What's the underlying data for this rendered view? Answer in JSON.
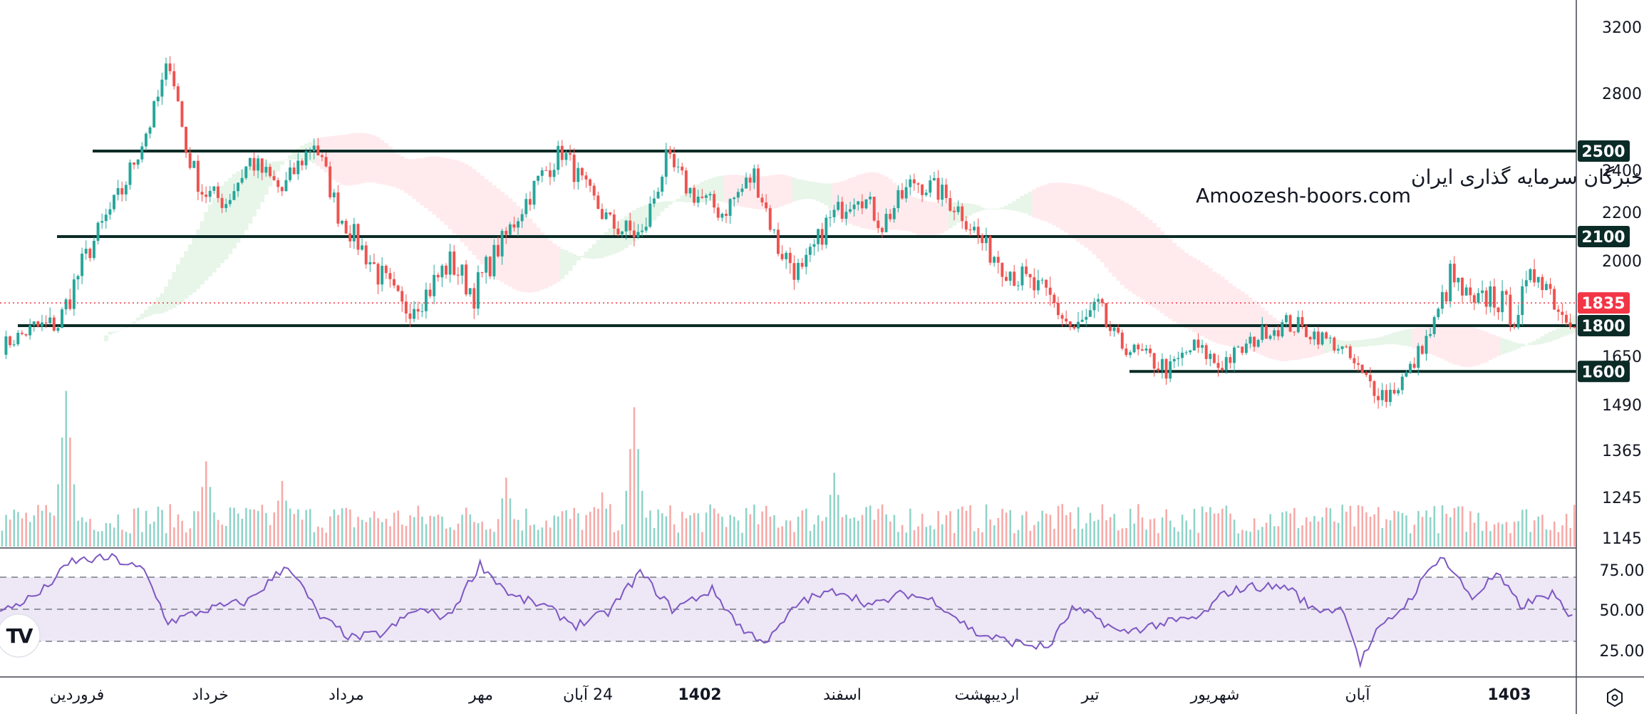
{
  "watermark": {
    "line1": "انجمن خبرگان سرمایه گذاری ایران",
    "line2": "Amoozesh-boors.com"
  },
  "logo": "TV",
  "colors": {
    "up": "#26a69a",
    "down": "#ef5350",
    "level_line": "#0b2b26",
    "current_price": "#f23645",
    "rsi_line": "#7e57c2",
    "rsi_band": "#ede7f6",
    "cloud_green": "#e8f5e9",
    "cloud_red": "#ffebee"
  },
  "price_axis": {
    "ticks": [
      "3200",
      "2800",
      "2400",
      "2200",
      "2000",
      "1650",
      "1490",
      "1365",
      "1245",
      "1145"
    ],
    "levels": [
      {
        "value": 2500,
        "label": "2500"
      },
      {
        "value": 2100,
        "label": "2100"
      },
      {
        "value": 1800,
        "label": "1800"
      },
      {
        "value": 1600,
        "label": "1600"
      }
    ],
    "current_price": {
      "value": 1835,
      "label": "1835"
    }
  },
  "rsi_axis": {
    "ticks": [
      "75.00",
      "50.00",
      "25.00"
    ]
  },
  "time_axis": {
    "labels": [
      {
        "text": "فروردین",
        "bold": false
      },
      {
        "text": "خرداد",
        "bold": false
      },
      {
        "text": "مرداد",
        "bold": false
      },
      {
        "text": "مهر",
        "bold": false
      },
      {
        "text": "24 آبان",
        "bold": false
      },
      {
        "text": "1402",
        "bold": true
      },
      {
        "text": "اسفند",
        "bold": false
      },
      {
        "text": "اردیبهشت",
        "bold": false
      },
      {
        "text": "تیر",
        "bold": false
      },
      {
        "text": "شهریور",
        "bold": false
      },
      {
        "text": "آبان",
        "bold": false
      },
      {
        "text": "1403",
        "bold": true
      }
    ]
  },
  "chart_data": {
    "type": "candlestick",
    "ylim": [
      1145,
      3200
    ],
    "support_resistance": [
      2500,
      2100,
      1800,
      1600
    ],
    "close_anchors": [
      [
        0,
        1700
      ],
      [
        8,
        1790
      ],
      [
        14,
        1800
      ],
      [
        22,
        2050
      ],
      [
        30,
        2300
      ],
      [
        38,
        2700
      ],
      [
        42,
        3000
      ],
      [
        46,
        2500
      ],
      [
        50,
        2300
      ],
      [
        56,
        2250
      ],
      [
        62,
        2450
      ],
      [
        70,
        2300
      ],
      [
        78,
        2550
      ],
      [
        84,
        2200
      ],
      [
        92,
        2000
      ],
      [
        100,
        1850
      ],
      [
        106,
        1900
      ],
      [
        112,
        2000
      ],
      [
        118,
        1900
      ],
      [
        126,
        2100
      ],
      [
        134,
        2350
      ],
      [
        140,
        2500
      ],
      [
        146,
        2300
      ],
      [
        152,
        2150
      ],
      [
        160,
        2100
      ],
      [
        166,
        2450
      ],
      [
        172,
        2300
      ],
      [
        180,
        2200
      ],
      [
        188,
        2380
      ],
      [
        194,
        2050
      ],
      [
        200,
        1950
      ],
      [
        206,
        2150
      ],
      [
        214,
        2300
      ],
      [
        220,
        2150
      ],
      [
        228,
        2350
      ],
      [
        234,
        2300
      ],
      [
        240,
        2200
      ],
      [
        246,
        2050
      ],
      [
        254,
        1950
      ],
      [
        262,
        1880
      ],
      [
        268,
        1780
      ],
      [
        274,
        1850
      ],
      [
        280,
        1700
      ],
      [
        286,
        1650
      ],
      [
        292,
        1600
      ],
      [
        298,
        1700
      ],
      [
        304,
        1620
      ],
      [
        310,
        1680
      ],
      [
        316,
        1780
      ],
      [
        322,
        1800
      ],
      [
        328,
        1760
      ],
      [
        334,
        1700
      ],
      [
        340,
        1580
      ],
      [
        346,
        1520
      ],
      [
        352,
        1600
      ],
      [
        358,
        1800
      ],
      [
        362,
        1950
      ],
      [
        368,
        1850
      ],
      [
        372,
        1900
      ],
      [
        378,
        1830
      ],
      [
        384,
        1980
      ],
      [
        390,
        1835
      ]
    ],
    "volume_peaks": [
      [
        16,
        0.95
      ],
      [
        51,
        0.52
      ],
      [
        70,
        0.4
      ],
      [
        126,
        0.42
      ],
      [
        150,
        0.33
      ],
      [
        158,
        0.85
      ],
      [
        208,
        0.45
      ],
      [
        306,
        0.25
      ],
      [
        356,
        0.22
      ]
    ],
    "rsi": {
      "levels": [
        70,
        50,
        30
      ],
      "range": [
        10,
        90
      ],
      "anchors": [
        [
          0,
          48
        ],
        [
          10,
          60
        ],
        [
          18,
          80
        ],
        [
          28,
          82
        ],
        [
          36,
          74
        ],
        [
          42,
          42
        ],
        [
          52,
          50
        ],
        [
          62,
          55
        ],
        [
          72,
          78
        ],
        [
          80,
          45
        ],
        [
          88,
          32
        ],
        [
          96,
          35
        ],
        [
          104,
          50
        ],
        [
          112,
          45
        ],
        [
          120,
          78
        ],
        [
          128,
          58
        ],
        [
          136,
          52
        ],
        [
          144,
          40
        ],
        [
          152,
          48
        ],
        [
          160,
          73
        ],
        [
          168,
          50
        ],
        [
          178,
          62
        ],
        [
          186,
          36
        ],
        [
          192,
          30
        ],
        [
          200,
          55
        ],
        [
          210,
          62
        ],
        [
          218,
          52
        ],
        [
          226,
          60
        ],
        [
          234,
          55
        ],
        [
          244,
          35
        ],
        [
          252,
          30
        ],
        [
          262,
          26
        ],
        [
          268,
          50
        ],
        [
          274,
          45
        ],
        [
          280,
          35
        ],
        [
          288,
          40
        ],
        [
          300,
          45
        ],
        [
          306,
          60
        ],
        [
          312,
          64
        ],
        [
          322,
          64
        ],
        [
          328,
          50
        ],
        [
          336,
          50
        ],
        [
          340,
          17
        ],
        [
          344,
          35
        ],
        [
          352,
          55
        ],
        [
          360,
          84
        ],
        [
          368,
          57
        ],
        [
          374,
          72
        ],
        [
          380,
          52
        ],
        [
          388,
          60
        ],
        [
          392,
          45
        ]
      ]
    }
  }
}
